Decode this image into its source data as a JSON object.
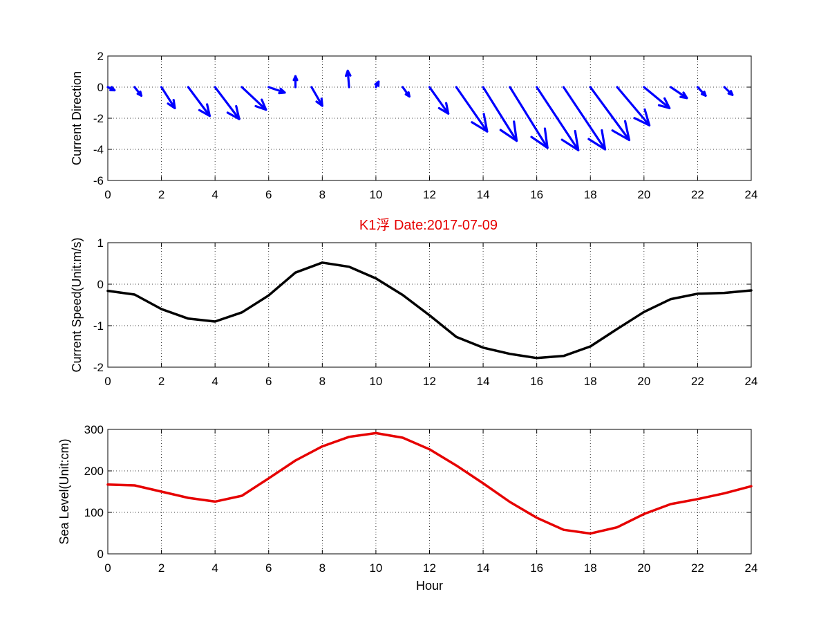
{
  "title": "K1浮    Date:2017-07-09",
  "chart_data": [
    {
      "type": "quiver",
      "ylabel": "Current Direction",
      "xlabel": "",
      "xlim": [
        0,
        24
      ],
      "ylim": [
        -6,
        2
      ],
      "xticks": [
        "0",
        "2",
        "4",
        "6",
        "8",
        "10",
        "12",
        "14",
        "16",
        "18",
        "20",
        "22",
        "24"
      ],
      "yticks": [
        "2",
        "0",
        "-2",
        "-4",
        "-6"
      ],
      "grid": true,
      "color": "#0000ff",
      "vectors": [
        {
          "x": 0,
          "u": 0.25,
          "v": -0.2
        },
        {
          "x": 1,
          "u": 0.25,
          "v": -0.55
        },
        {
          "x": 2,
          "u": 0.5,
          "v": -1.35
        },
        {
          "x": 3,
          "u": 0.8,
          "v": -1.85
        },
        {
          "x": 4,
          "u": 0.9,
          "v": -2.05
        },
        {
          "x": 5,
          "u": 0.9,
          "v": -1.45
        },
        {
          "x": 6,
          "u": 0.6,
          "v": -0.35
        },
        {
          "x": 7,
          "u": 0.0,
          "v": 0.7
        },
        {
          "x": 7.6,
          "u": 0.4,
          "v": -1.2
        },
        {
          "x": 9,
          "u": -0.05,
          "v": 1.05
        },
        {
          "x": 10,
          "u": 0.1,
          "v": 0.35
        },
        {
          "x": 11,
          "u": 0.25,
          "v": -0.6
        },
        {
          "x": 12,
          "u": 0.7,
          "v": -1.7
        },
        {
          "x": 13,
          "u": 1.15,
          "v": -2.85
        },
        {
          "x": 14,
          "u": 1.25,
          "v": -3.45
        },
        {
          "x": 15,
          "u": 1.4,
          "v": -3.9
        },
        {
          "x": 16,
          "u": 1.55,
          "v": -4.05
        },
        {
          "x": 17,
          "u": 1.55,
          "v": -4.0
        },
        {
          "x": 18,
          "u": 1.45,
          "v": -3.4
        },
        {
          "x": 19,
          "u": 1.2,
          "v": -2.45
        },
        {
          "x": 20,
          "u": 0.95,
          "v": -1.35
        },
        {
          "x": 21,
          "u": 0.6,
          "v": -0.7
        },
        {
          "x": 22,
          "u": 0.3,
          "v": -0.55
        },
        {
          "x": 23,
          "u": 0.3,
          "v": -0.5
        }
      ]
    },
    {
      "type": "line",
      "ylabel": "Current Speed(Unit:m/s)",
      "xlabel": "",
      "xlim": [
        0,
        24
      ],
      "ylim": [
        -2,
        1
      ],
      "xticks": [
        "0",
        "2",
        "4",
        "6",
        "8",
        "10",
        "12",
        "14",
        "16",
        "18",
        "20",
        "22",
        "24"
      ],
      "yticks": [
        "1",
        "0",
        "-1",
        "-2"
      ],
      "grid": true,
      "color": "#000000",
      "x": [
        0,
        1,
        2,
        3,
        4,
        5,
        6,
        7,
        8,
        9,
        10,
        11,
        12,
        13,
        14,
        15,
        16,
        17,
        18,
        19,
        20,
        21,
        22,
        23,
        24
      ],
      "y": [
        -0.16,
        -0.25,
        -0.6,
        -0.83,
        -0.9,
        -0.68,
        -0.27,
        0.28,
        0.52,
        0.42,
        0.14,
        -0.26,
        -0.75,
        -1.27,
        -1.53,
        -1.68,
        -1.78,
        -1.73,
        -1.5,
        -1.08,
        -0.67,
        -0.36,
        -0.23,
        -0.21,
        -0.15
      ]
    },
    {
      "type": "line",
      "ylabel": "Sea Level(Unit:cm)",
      "xlabel": "Hour",
      "xlim": [
        0,
        24
      ],
      "ylim": [
        0,
        300
      ],
      "xticks": [
        "0",
        "2",
        "4",
        "6",
        "8",
        "10",
        "12",
        "14",
        "16",
        "18",
        "20",
        "22",
        "24"
      ],
      "yticks": [
        "300",
        "200",
        "100",
        "0"
      ],
      "grid": true,
      "color": "#e60000",
      "x": [
        0,
        1,
        2,
        3,
        4,
        5,
        6,
        7,
        8,
        9,
        10,
        11,
        12,
        13,
        14,
        15,
        16,
        17,
        18,
        19,
        20,
        21,
        22,
        23,
        24
      ],
      "y": [
        167,
        165,
        150,
        135,
        126,
        140,
        182,
        225,
        259,
        282,
        291,
        280,
        252,
        213,
        170,
        125,
        87,
        58,
        49,
        64,
        96,
        120,
        132,
        146,
        163
      ]
    }
  ]
}
